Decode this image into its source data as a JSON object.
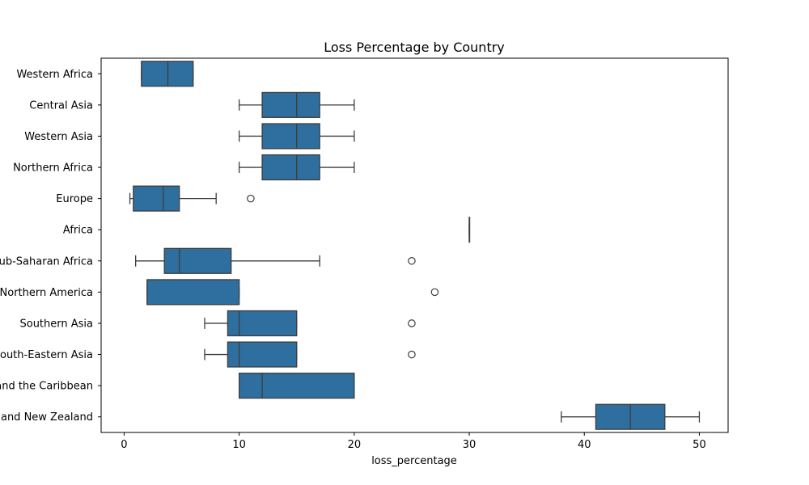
{
  "chart_data": {
    "type": "box",
    "orientation": "horizontal",
    "title": "Loss Percentage by Country",
    "xlabel": "loss_percentage",
    "ylabel": "",
    "xlim": [
      -2,
      52.5
    ],
    "xticks": [
      0,
      10,
      20,
      30,
      40,
      50
    ],
    "grid": false,
    "box_color": "#2f6f9f",
    "line_color": "#3d3d3d",
    "categories": [
      {
        "label": "Western Africa",
        "whislo": 1.5,
        "q1": 1.5,
        "med": 3.8,
        "q3": 6.0,
        "whishi": 6.0,
        "fliers": []
      },
      {
        "label": "Central Asia",
        "whislo": 10,
        "q1": 12,
        "med": 15,
        "q3": 17,
        "whishi": 20,
        "fliers": []
      },
      {
        "label": "Western Asia",
        "whislo": 10,
        "q1": 12,
        "med": 15,
        "q3": 17,
        "whishi": 20,
        "fliers": []
      },
      {
        "label": "Northern Africa",
        "whislo": 10,
        "q1": 12,
        "med": 15,
        "q3": 17,
        "whishi": 20,
        "fliers": []
      },
      {
        "label": "Europe",
        "whislo": 0.5,
        "q1": 0.8,
        "med": 3.4,
        "q3": 4.8,
        "whishi": 8.0,
        "fliers": [
          11
        ]
      },
      {
        "label": "Africa",
        "whislo": 30,
        "q1": 30,
        "med": 30,
        "q3": 30,
        "whishi": 30,
        "fliers": []
      },
      {
        "label": "Sub-Saharan Africa",
        "whislo": 1.0,
        "q1": 3.5,
        "med": 4.8,
        "q3": 9.3,
        "whishi": 17,
        "fliers": [
          25
        ]
      },
      {
        "label": "Northern America",
        "whislo": 2,
        "q1": 2,
        "med": 2,
        "q3": 10,
        "whishi": 10,
        "fliers": [
          27
        ]
      },
      {
        "label": "Southern Asia",
        "whislo": 7,
        "q1": 9,
        "med": 10,
        "q3": 15,
        "whishi": 15,
        "fliers": [
          25
        ]
      },
      {
        "label": "South-Eastern Asia",
        "whislo": 7,
        "q1": 9,
        "med": 10,
        "q3": 15,
        "whishi": 15,
        "fliers": [
          25
        ]
      },
      {
        "label": "Latin America and the Caribbean",
        "whislo": 10,
        "q1": 10,
        "med": 12,
        "q3": 20,
        "whishi": 20,
        "fliers": []
      },
      {
        "label": "Australia and New Zealand",
        "whislo": 38,
        "q1": 41,
        "med": 44,
        "q3": 47,
        "whishi": 50,
        "fliers": []
      }
    ]
  }
}
